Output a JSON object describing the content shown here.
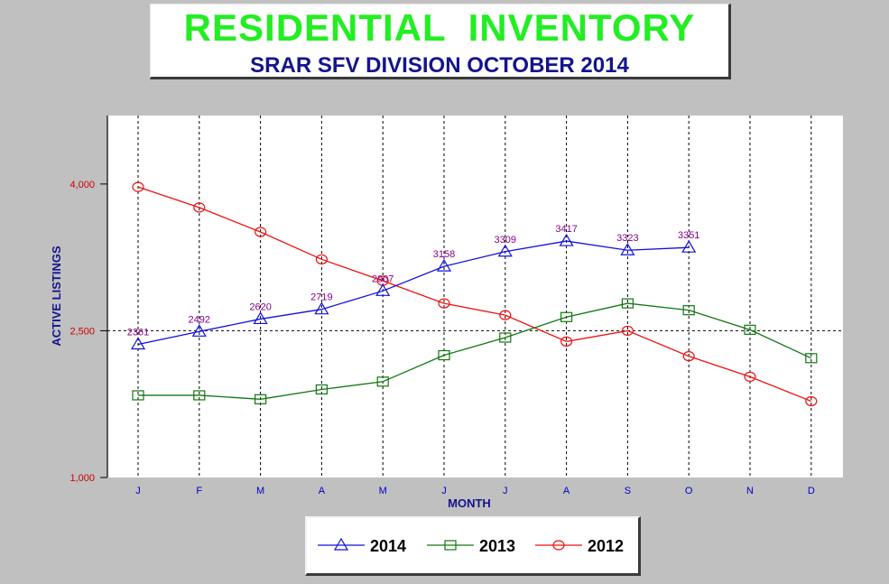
{
  "header": {
    "title": "RESIDENTIAL  INVENTORY",
    "subtitle": "SRAR SFV DIVISION OCTOBER 2014"
  },
  "colors": {
    "background": "#c0c0c0",
    "title": "#22ee22",
    "subtitle": "#14148c",
    "y_tick_labels": "#cc0000",
    "x_tick_labels": "#0000cc",
    "axis_titles": "#14148c",
    "data_labels": "#880088"
  },
  "chart_data": {
    "type": "line",
    "title": "",
    "xlabel": "MONTH",
    "ylabel": "ACTIVE LISTINGS",
    "categories": [
      "J",
      "F",
      "M",
      "A",
      "M",
      "J",
      "J",
      "A",
      "S",
      "O",
      "N",
      "D"
    ],
    "ylim": [
      1000,
      4700
    ],
    "yticks": [
      1000,
      2500,
      4000
    ],
    "ytick_labels": [
      "1,000",
      "2,500",
      "4,000"
    ],
    "grid": "dashed vertical gridlines at each month; dashed horizontal line at 2,500",
    "legend_position": "bottom",
    "series": [
      {
        "name": "2014",
        "color": "#1010dd",
        "marker": "triangle",
        "values": [
          2361,
          2492,
          2620,
          2719,
          2907,
          3158,
          3309,
          3417,
          3323,
          3351,
          null,
          null
        ],
        "labels": [
          "2361",
          "2492",
          "2620",
          "2719",
          "2907",
          "3158",
          "3309",
          "3417",
          "3323",
          "3351",
          null,
          null
        ]
      },
      {
        "name": "2013",
        "color": "#117711",
        "marker": "square",
        "values": [
          1840,
          1840,
          1800,
          1900,
          1980,
          2250,
          2430,
          2640,
          2780,
          2710,
          2510,
          2220
        ]
      },
      {
        "name": "2012",
        "color": "#ee1111",
        "marker": "circle",
        "values": [
          3970,
          3760,
          3510,
          3230,
          3010,
          2780,
          2660,
          2390,
          2500,
          2240,
          2030,
          1780
        ]
      }
    ]
  }
}
